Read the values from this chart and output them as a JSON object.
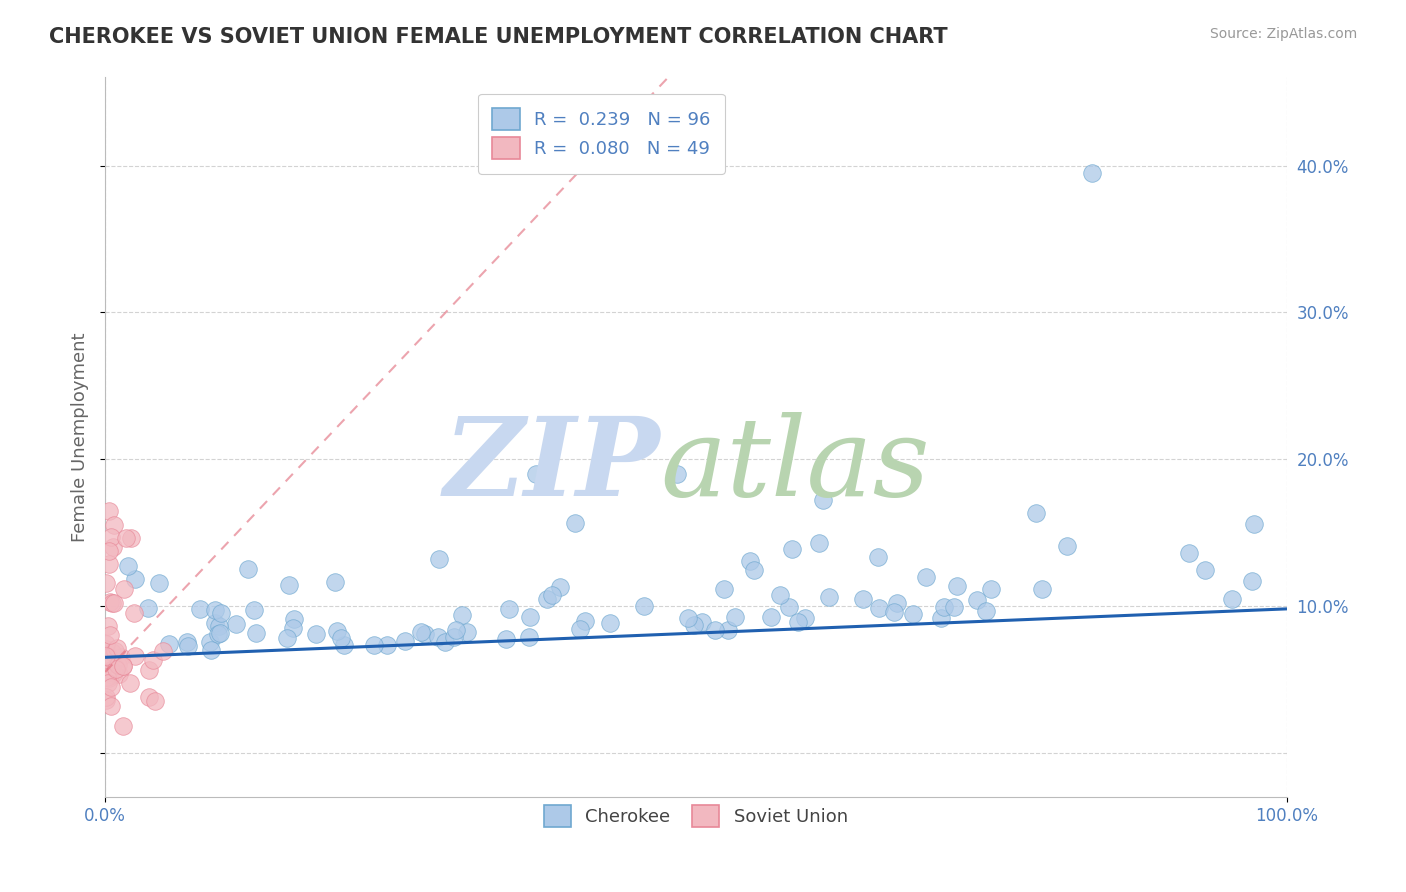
{
  "title": "CHEROKEE VS SOVIET UNION FEMALE UNEMPLOYMENT CORRELATION CHART",
  "source_text": "Source: ZipAtlas.com",
  "ylabel": "Female Unemployment",
  "xlim": [
    0.0,
    1.0
  ],
  "ylim": [
    -0.03,
    0.46
  ],
  "xticks": [
    0.0,
    1.0
  ],
  "xticklabels": [
    "0.0%",
    "100.0%"
  ],
  "yticks_right": [
    0.1,
    0.2,
    0.3,
    0.4
  ],
  "yticklabels_right": [
    "10.0%",
    "20.0%",
    "30.0%",
    "40.0%"
  ],
  "yticks_left": [
    0.0
  ],
  "yticklabels_left": [
    ""
  ],
  "cherokee_color": "#adc9e8",
  "cherokee_edge_color": "#6fa8d0",
  "soviet_color": "#f2b8c0",
  "soviet_edge_color": "#e88898",
  "trend_cherokee_color": "#2060b0",
  "trend_soviet_color": "#e06878",
  "legend_label_1": "R =  0.239   N = 96",
  "legend_label_2": "R =  0.080   N = 49",
  "watermark_zip": "ZIP",
  "watermark_atlas": "atlas",
  "watermark_zip_color": "#c8d8f0",
  "watermark_atlas_color": "#b8d4b0",
  "background_color": "#ffffff",
  "grid_color": "#c8c8c8",
  "title_color": "#333333",
  "tick_color": "#5080c0",
  "axis_label_color": "#666666"
}
